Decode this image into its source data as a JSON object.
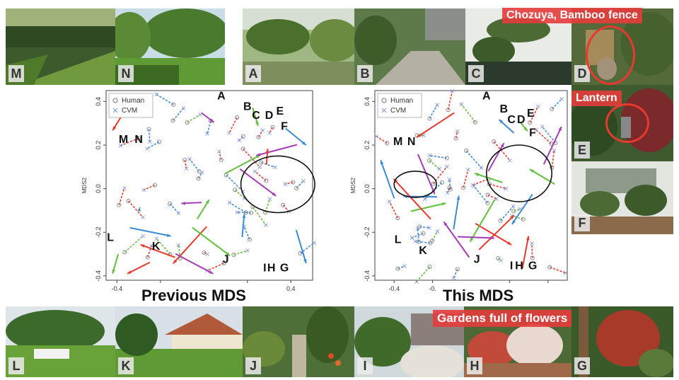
{
  "photos": {
    "M": "M",
    "N": "N",
    "A": "A",
    "B": "B",
    "C": "C",
    "D": "D",
    "E": "E",
    "F": "F",
    "L": "L",
    "K": "K",
    "J": "J",
    "I": "I",
    "H": "H",
    "G": "G"
  },
  "captions": {
    "chozuya": "Chozuya, Bamboo fence",
    "lantern": "Lantern",
    "flowers": "Gardens full of flowers"
  },
  "colors": {
    "human": "#777777",
    "cvm": "#7a8fd8",
    "red": "#e8392f",
    "blue": "#3c8ad6",
    "green": "#62bf3c",
    "purple": "#a43db6"
  },
  "chart_data": [
    {
      "type": "scatter",
      "xlabel": "Previous MDS",
      "ylabel": "MDS2",
      "xlim": [
        -0.45,
        0.5
      ],
      "ylim": [
        -0.42,
        0.45
      ],
      "xticks": [
        "-0.4",
        "",
        "",
        "0.4"
      ],
      "yticks": [
        "-0.4",
        "-0.2",
        "0.0",
        "0.2",
        "0.4"
      ],
      "legend": [
        "Human",
        "CVM"
      ],
      "legend_position": "top-left",
      "point_labels": [
        {
          "text": "A",
          "x": 0.08,
          "y": 0.41
        },
        {
          "text": "B",
          "x": 0.2,
          "y": 0.36
        },
        {
          "text": "C",
          "x": 0.24,
          "y": 0.32
        },
        {
          "text": "D",
          "x": 0.3,
          "y": 0.32
        },
        {
          "text": "E",
          "x": 0.35,
          "y": 0.34
        },
        {
          "text": "F",
          "x": 0.37,
          "y": 0.27
        },
        {
          "text": "M",
          "x": -0.37,
          "y": 0.21
        },
        {
          "text": "N",
          "x": -0.3,
          "y": 0.21
        },
        {
          "text": "L",
          "x": -0.43,
          "y": -0.24
        },
        {
          "text": "K",
          "x": -0.22,
          "y": -0.28
        },
        {
          "text": "J",
          "x": 0.1,
          "y": -0.34
        },
        {
          "text": "I",
          "x": 0.28,
          "y": -0.38
        },
        {
          "text": "H",
          "x": 0.31,
          "y": -0.38
        },
        {
          "text": "G",
          "x": 0.37,
          "y": -0.38
        }
      ]
    },
    {
      "type": "scatter",
      "xlabel": "This MDS",
      "ylabel": "MDS2",
      "xlim": [
        -0.5,
        0.5
      ],
      "ylim": [
        -0.42,
        0.45
      ],
      "xticks": [
        "-0.4",
        "-0.",
        "",
        ""
      ],
      "yticks": [
        "-0.4",
        "-0.2",
        "0.0",
        "0.2",
        "0.4"
      ],
      "legend": [
        "Human",
        "CVM"
      ],
      "legend_position": "top-left",
      "point_labels": [
        {
          "text": "A",
          "x": 0.08,
          "y": 0.41
        },
        {
          "text": "B",
          "x": 0.17,
          "y": 0.35
        },
        {
          "text": "C",
          "x": 0.21,
          "y": 0.3
        },
        {
          "text": "D",
          "x": 0.26,
          "y": 0.3
        },
        {
          "text": "E",
          "x": 0.31,
          "y": 0.33
        },
        {
          "text": "F",
          "x": 0.32,
          "y": 0.24
        },
        {
          "text": "M",
          "x": -0.38,
          "y": 0.2
        },
        {
          "text": "N",
          "x": -0.31,
          "y": 0.2
        },
        {
          "text": "L",
          "x": -0.38,
          "y": -0.25
        },
        {
          "text": "K",
          "x": -0.25,
          "y": -0.3
        },
        {
          "text": "J",
          "x": 0.03,
          "y": -0.34
        },
        {
          "text": "I",
          "x": 0.21,
          "y": -0.37
        },
        {
          "text": "H",
          "x": 0.25,
          "y": -0.37
        },
        {
          "text": "G",
          "x": 0.32,
          "y": -0.37
        }
      ]
    }
  ]
}
